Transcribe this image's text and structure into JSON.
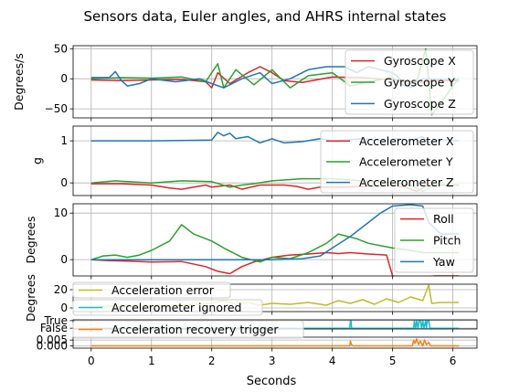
{
  "title": "Sensors data, Euler angles, and AHRS internal states",
  "xlabel": "Seconds",
  "x_ticks": [
    0,
    1,
    2,
    3,
    4,
    5,
    6
  ],
  "x_range": [
    -0.3,
    6.4
  ],
  "colors": {
    "red": "#d62728",
    "green": "#2ca02c",
    "blue": "#1f77b4",
    "olive": "#bcbd22",
    "cyan": "#17becf",
    "orange": "#ff7f0e"
  },
  "chart_data": [
    {
      "type": "line",
      "ylabel": "Degrees/s",
      "ylim": [
        -65,
        55
      ],
      "y_ticks": [
        {
          "v": 50,
          "label": "50"
        },
        {
          "v": 0,
          "label": "0"
        },
        {
          "v": -50,
          "label": "−50"
        }
      ],
      "grid": true,
      "legend": "top-right",
      "series": [
        {
          "name": "Gyroscope X",
          "color": "red",
          "x": [
            0,
            0.5,
            1.0,
            1.5,
            1.9,
            2.0,
            2.1,
            2.3,
            2.6,
            2.8,
            3.0,
            3.2,
            3.5,
            4.0,
            4.5,
            5.0,
            5.3,
            5.5,
            5.7,
            6.1
          ],
          "y": [
            -2,
            -3,
            -2,
            -1,
            -5,
            -15,
            10,
            -8,
            10,
            20,
            10,
            -3,
            -6,
            3,
            2,
            -2,
            -5,
            -6,
            -3,
            -4
          ]
        },
        {
          "name": "Gyroscope Y",
          "color": "green",
          "x": [
            0,
            0.5,
            1.0,
            1.5,
            1.9,
            2.0,
            2.1,
            2.2,
            2.4,
            2.7,
            3.0,
            3.3,
            3.6,
            4.0,
            4.3,
            4.6,
            5.0,
            5.2,
            5.4,
            5.55,
            5.65,
            6.1
          ],
          "y": [
            0,
            2,
            1,
            3,
            -5,
            10,
            25,
            -15,
            15,
            -10,
            15,
            -15,
            5,
            10,
            -12,
            -5,
            2,
            -12,
            -5,
            50,
            -60,
            1
          ]
        },
        {
          "name": "Gyroscope Z",
          "color": "blue",
          "x": [
            0,
            0.3,
            0.4,
            0.5,
            0.6,
            0.8,
            1.0,
            1.4,
            1.8,
            2.0,
            2.2,
            2.5,
            2.8,
            3.0,
            3.3,
            3.6,
            3.9,
            4.2,
            4.4,
            4.6,
            5.0,
            5.3,
            5.5,
            6.1
          ],
          "y": [
            2,
            2,
            12,
            -3,
            -12,
            -8,
            0,
            -5,
            0,
            -8,
            -15,
            0,
            10,
            -8,
            0,
            15,
            20,
            20,
            10,
            20,
            10,
            -15,
            0,
            -2
          ]
        }
      ]
    },
    {
      "type": "line",
      "ylabel": "g",
      "ylim": [
        -0.3,
        1.35
      ],
      "y_ticks": [
        {
          "v": 1,
          "label": "1"
        },
        {
          "v": 0,
          "label": "0"
        }
      ],
      "grid": true,
      "legend": "top-right",
      "series": [
        {
          "name": "Accelerometer X",
          "color": "red",
          "x": [
            0,
            0.5,
            1.0,
            1.3,
            1.5,
            1.9,
            2.0,
            2.3,
            2.5,
            2.8,
            3.2,
            3.4,
            3.6,
            3.8,
            4.2,
            4.6,
            5.0,
            5.2,
            5.4,
            5.6,
            6.1
          ],
          "y": [
            -0.02,
            -0.02,
            -0.05,
            -0.12,
            -0.15,
            -0.05,
            -0.1,
            -0.05,
            -0.15,
            -0.05,
            -0.05,
            -0.08,
            -0.15,
            -0.1,
            -0.1,
            -0.08,
            -0.05,
            -0.1,
            -0.2,
            -0.05,
            -0.05
          ]
        },
        {
          "name": "Accelerometer Y",
          "color": "green",
          "x": [
            0,
            0.4,
            1.0,
            1.5,
            2.0,
            2.3,
            2.5,
            2.7,
            3.0,
            3.5,
            4.0,
            4.5,
            5.0,
            5.3,
            5.5,
            5.7,
            6.1
          ],
          "y": [
            0.0,
            0.05,
            0.0,
            0.05,
            0.03,
            -0.1,
            -0.05,
            -0.02,
            0.05,
            0.1,
            0.1,
            0.05,
            0.0,
            -0.05,
            -0.2,
            -0.05,
            -0.05
          ]
        },
        {
          "name": "Accelerometer Z",
          "color": "blue",
          "x": [
            0,
            0.5,
            1.0,
            1.5,
            2.0,
            2.1,
            2.2,
            2.3,
            2.4,
            2.6,
            2.8,
            3.0,
            3.2,
            3.5,
            3.8,
            4.0,
            4.2,
            4.5,
            4.8,
            5.1,
            5.3,
            5.5,
            5.6,
            5.8,
            6.1
          ],
          "y": [
            1.0,
            1.0,
            1.0,
            1.01,
            1.02,
            1.2,
            1.12,
            1.18,
            1.05,
            1.1,
            0.95,
            1.05,
            0.95,
            0.98,
            1.05,
            1.0,
            1.02,
            1.05,
            1.0,
            1.05,
            1.0,
            1.1,
            0.95,
            1.03,
            1.0
          ]
        }
      ]
    },
    {
      "type": "line",
      "ylabel": "Degrees",
      "ylim": [
        -3.5,
        12
      ],
      "y_ticks": [
        {
          "v": 10,
          "label": "10"
        },
        {
          "v": 0,
          "label": "0"
        }
      ],
      "grid": true,
      "legend": "top-right",
      "series": [
        {
          "name": "Roll",
          "color": "red",
          "x": [
            0,
            0.3,
            0.6,
            1.0,
            1.5,
            1.9,
            2.1,
            2.3,
            2.5,
            2.7,
            3.0,
            3.3,
            3.6,
            3.9,
            4.1,
            4.3,
            4.6,
            4.9,
            5.0,
            5.3,
            5.5,
            5.7,
            6.1
          ],
          "y": [
            0,
            -0.2,
            -0.3,
            -0.5,
            -0.4,
            -1.5,
            -2.5,
            -3.0,
            -1.5,
            -0.5,
            0.5,
            1.0,
            1.2,
            1.5,
            1.3,
            1.5,
            1.2,
            1.0,
            -3.5,
            -4.0,
            -3.8,
            -3.5,
            -3.5
          ]
        },
        {
          "name": "Pitch",
          "color": "green",
          "x": [
            0,
            0.2,
            0.4,
            0.6,
            0.8,
            1.0,
            1.3,
            1.5,
            1.7,
            2.0,
            2.2,
            2.5,
            2.8,
            3.0,
            3.3,
            3.6,
            3.9,
            4.1,
            4.4,
            4.6,
            5.0,
            5.3,
            5.5,
            6.1
          ],
          "y": [
            0,
            0.8,
            1.0,
            0.5,
            1.0,
            2.0,
            4.0,
            7.5,
            5.5,
            4.0,
            2.5,
            0.5,
            -0.5,
            0.5,
            0.2,
            1.5,
            3.5,
            5.5,
            4.5,
            3.5,
            2.5,
            2.0,
            1.5,
            1.5
          ]
        },
        {
          "name": "Yaw",
          "color": "blue",
          "x": [
            0,
            1.0,
            2.0,
            3.0,
            3.5,
            3.8,
            4.0,
            4.3,
            4.6,
            4.8,
            5.0,
            5.3,
            5.5,
            5.6,
            5.8,
            6.1
          ],
          "y": [
            0,
            0,
            0,
            0,
            0.2,
            0.8,
            2.5,
            5.0,
            8.0,
            10.0,
            11.5,
            11.8,
            11.5,
            8.0,
            5.5,
            5.5
          ]
        }
      ]
    },
    {
      "type": "line",
      "ylabel": "Degrees",
      "ylim": [
        -4,
        26
      ],
      "y_ticks": [
        {
          "v": 20,
          "label": "20"
        },
        {
          "v": 0,
          "label": "0"
        }
      ],
      "grid": true,
      "legend": "upper-left",
      "series": [
        {
          "name": "Acceleration error",
          "color": "olive",
          "x": [
            0,
            0.3,
            0.6,
            1.0,
            1.5,
            2.0,
            2.2,
            2.4,
            2.6,
            2.8,
            3.0,
            3.3,
            3.6,
            3.9,
            4.1,
            4.3,
            4.5,
            4.7,
            4.9,
            5.1,
            5.3,
            5.5,
            5.6,
            5.65,
            5.8,
            6.1
          ],
          "y": [
            0,
            2,
            1,
            2,
            3,
            5,
            8,
            4,
            6,
            3,
            5,
            4,
            6,
            3,
            8,
            5,
            9,
            4,
            10,
            6,
            12,
            8,
            25,
            5,
            6,
            6
          ]
        }
      ]
    },
    {
      "type": "line",
      "ylabel": "",
      "ylim": [
        -0.1,
        1.1
      ],
      "y_ticks": [
        {
          "v": 1,
          "label": "True"
        },
        {
          "v": 0,
          "label": "False"
        }
      ],
      "grid": true,
      "legend": "upper-left",
      "series": [
        {
          "name": "Accelerometer ignored",
          "color": "cyan",
          "x": [
            0,
            4.29,
            4.3,
            4.31,
            4.32,
            5.35,
            5.36,
            5.38,
            5.4,
            5.42,
            5.44,
            5.46,
            5.48,
            5.5,
            5.52,
            5.55,
            5.56,
            5.58,
            5.6,
            5.62,
            6.1
          ],
          "y": [
            0,
            0,
            1,
            1,
            0,
            0,
            1,
            0,
            1,
            0,
            1,
            1,
            0,
            1,
            0,
            1,
            0,
            1,
            1,
            0,
            0
          ]
        }
      ]
    },
    {
      "type": "line",
      "ylabel": "",
      "ylim": [
        -0.002,
        0.0075
      ],
      "y_ticks": [
        {
          "v": 0.005,
          "label": "0.005"
        },
        {
          "v": 0,
          "label": "0.000"
        }
      ],
      "grid": true,
      "legend": "upper-left",
      "series": [
        {
          "name": "Acceleration recovery trigger",
          "color": "orange",
          "x": [
            0,
            4.29,
            4.3,
            4.32,
            4.34,
            5.33,
            5.35,
            5.37,
            5.4,
            5.43,
            5.46,
            5.5,
            5.53,
            5.56,
            5.6,
            5.63,
            6.1
          ],
          "y": [
            0,
            0,
            0.004,
            0.001,
            0,
            0,
            0.005,
            0.002,
            0.006,
            0.001,
            0.004,
            0.0,
            0.005,
            0.001,
            0.003,
            0,
            0
          ]
        }
      ]
    }
  ]
}
